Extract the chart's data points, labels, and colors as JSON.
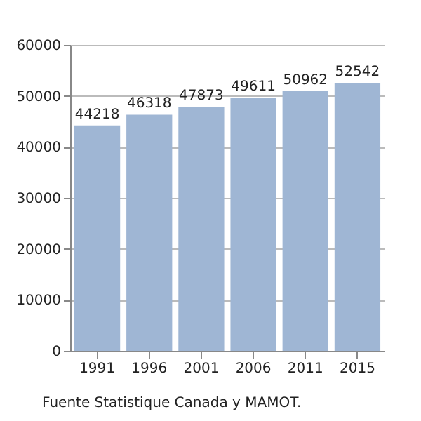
{
  "chart_data": {
    "type": "bar",
    "categories": [
      "1991",
      "1996",
      "2001",
      "2006",
      "2011",
      "2015"
    ],
    "values": [
      44218,
      46318,
      47873,
      49611,
      50962,
      52542
    ],
    "color": "#9fb6d4",
    "ylim": [
      0,
      60000
    ],
    "yticks": [
      0,
      10000,
      20000,
      30000,
      40000,
      50000,
      60000
    ],
    "grid": "y",
    "data_labels": true,
    "annotations": [
      "Fuente Statistique Canada y MAMOT."
    ]
  }
}
